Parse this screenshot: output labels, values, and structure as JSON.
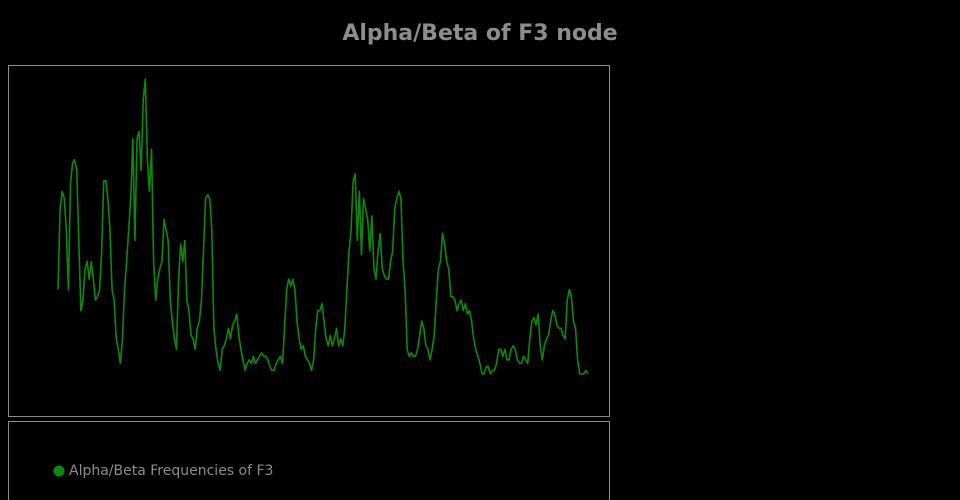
{
  "chart_data": {
    "type": "line",
    "title": "Alpha/Beta of F3 node",
    "ylim": [
      0,
      100
    ],
    "legend": "bottom",
    "series": [
      {
        "name": "Alpha/Beta Frequencies of F3",
        "color": "#0b8a0b",
        "values": [
          36,
          59,
          64,
          62,
          53,
          36,
          66,
          72,
          73,
          70,
          50,
          30,
          33,
          42,
          44,
          39,
          44,
          39,
          33,
          34,
          36,
          47,
          67,
          67,
          62,
          53,
          36,
          33,
          22,
          19,
          15,
          22,
          36,
          44,
          53,
          62,
          79,
          50,
          79,
          81,
          70,
          90,
          96,
          73,
          64,
          76,
          44,
          33,
          39,
          42,
          44,
          56,
          53,
          50,
          33,
          27,
          22,
          19,
          39,
          49,
          44,
          50,
          33,
          30,
          23,
          22,
          19,
          25,
          27,
          33,
          47,
          62,
          63,
          62,
          53,
          25,
          19,
          15,
          13,
          19,
          20,
          22,
          25,
          22,
          26,
          27,
          29,
          23,
          19,
          16,
          13,
          15,
          16,
          15,
          17,
          15,
          16,
          17,
          18,
          17,
          17,
          16,
          14,
          13,
          13,
          15,
          16,
          17,
          15,
          25,
          36,
          39,
          37,
          39,
          36,
          27,
          22,
          19,
          20,
          17,
          16,
          15,
          13,
          16,
          25,
          30,
          30,
          32,
          27,
          22,
          20,
          23,
          20,
          22,
          25,
          20,
          22,
          20,
          25,
          36,
          47,
          53,
          67,
          69,
          50,
          64,
          46,
          62,
          59,
          56,
          47,
          57,
          42,
          39,
          47,
          52,
          42,
          40,
          39,
          39,
          44,
          47,
          59,
          62,
          64,
          62,
          44,
          36,
          19,
          17,
          18,
          17,
          17,
          19,
          23,
          27,
          25,
          20,
          19,
          16,
          19,
          23,
          33,
          42,
          44,
          52,
          49,
          44,
          42,
          34,
          34,
          33,
          30,
          32,
          33,
          30,
          32,
          29,
          30,
          27,
          22,
          19,
          17,
          15,
          12,
          12,
          14,
          14,
          12,
          13,
          13,
          15,
          19,
          19,
          17,
          19,
          16,
          16,
          19,
          20,
          19,
          16,
          15,
          15,
          17,
          16,
          15,
          22,
          27,
          28,
          26,
          29,
          20,
          16,
          20,
          22,
          23,
          27,
          30,
          29,
          26,
          25,
          25,
          23,
          22,
          33,
          36,
          34,
          27,
          25,
          16,
          12,
          12,
          12,
          13,
          12
        ]
      }
    ]
  }
}
